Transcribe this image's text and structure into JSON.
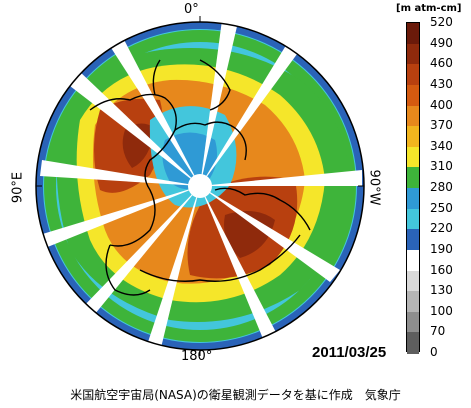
{
  "map": {
    "labels": {
      "top": "0°",
      "bottom": "180°",
      "left": "90°E",
      "right": "90°W"
    },
    "date": "2011/03/25",
    "footer": "米国航空宇宙局(NASA)の衛星観測データを基に作成　気象庁"
  },
  "colorbar": {
    "unit": "[m atm-cm]",
    "ticks": [
      "520",
      "490",
      "460",
      "430",
      "400",
      "370",
      "340",
      "310",
      "280",
      "250",
      "220",
      "190",
      "160",
      "130",
      "100",
      "70",
      "0"
    ],
    "colors": [
      "#6b1a0a",
      "#8f2a0c",
      "#b8400f",
      "#d45a10",
      "#e7881c",
      "#f2b51e",
      "#f5e62a",
      "#3eb43a",
      "#2f9ad5",
      "#43c6dc",
      "#2a63b8",
      "#ffffff",
      "#d9d9d9",
      "#b5b5b5",
      "#8e8e8e",
      "#5e5e5e",
      "#222222"
    ]
  }
}
